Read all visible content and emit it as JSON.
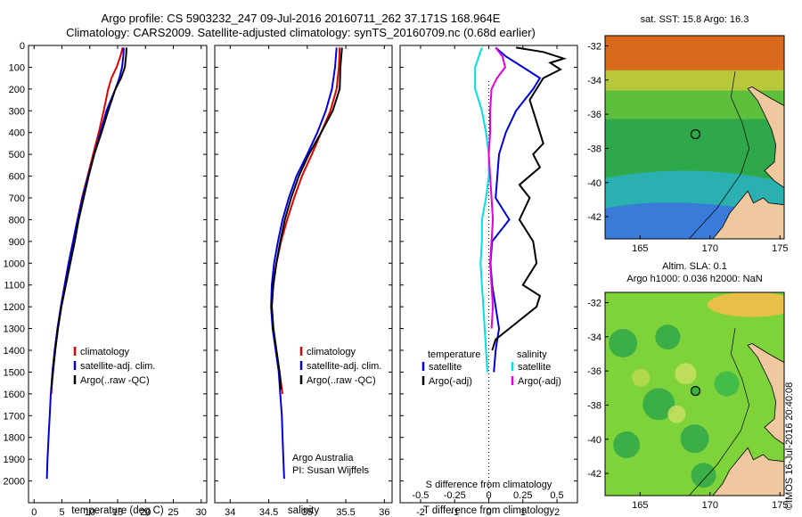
{
  "header": {
    "line1": "Argo profile: CS 5903232_247 09-Jul-2016 20160711_262 37.171S 168.964E",
    "line2": "Climatology: CARS2009. Satellite-adjusted climatology: synTS_20160709.nc (0.68d earlier)"
  },
  "colors": {
    "climatology": "#e00000",
    "satellite": "#0000dd",
    "argo": "#000000",
    "satellite_salinity": "#00e0e0",
    "argo_salinity": "#e000e0",
    "land": "#f0c8a0"
  },
  "chart_data": [
    {
      "id": "temperature",
      "type": "line",
      "xlabel": "temperature (deg C)",
      "ylabel": "",
      "xlim": [
        -1,
        31
      ],
      "ylim": [
        2100,
        0
      ],
      "xticks": [
        "0",
        "5",
        "10",
        "15",
        "20",
        "25",
        "30"
      ],
      "yticks": [
        "0",
        "100",
        "200",
        "300",
        "400",
        "500",
        "600",
        "700",
        "800",
        "900",
        "1000",
        "1100",
        "1200",
        "1300",
        "1400",
        "1500",
        "1600",
        "1700",
        "1800",
        "1900",
        "2000"
      ],
      "legend": [
        "climatology",
        "satellite-adj. clim.",
        "Argo(..raw -QC)"
      ],
      "series": [
        {
          "name": "climatology",
          "color": "#e00000",
          "points": [
            [
              15.9,
              10
            ],
            [
              15.5,
              50
            ],
            [
              14.8,
              100
            ],
            [
              13.9,
              150
            ],
            [
              13.3,
              200
            ],
            [
              12.5,
              300
            ],
            [
              11.6,
              400
            ],
            [
              10.6,
              500
            ],
            [
              9.6,
              600
            ],
            [
              8.6,
              700
            ],
            [
              7.8,
              800
            ],
            [
              7.0,
              900
            ],
            [
              6.2,
              1000
            ],
            [
              5.5,
              1100
            ],
            [
              4.8,
              1200
            ],
            [
              4.2,
              1300
            ],
            [
              3.7,
              1400
            ],
            [
              3.3,
              1500
            ],
            [
              3.1,
              1600
            ]
          ]
        },
        {
          "name": "satellite-adj. clim.",
          "color": "#0000dd",
          "points": [
            [
              16.1,
              10
            ],
            [
              16.0,
              50
            ],
            [
              15.8,
              100
            ],
            [
              15.3,
              150
            ],
            [
              14.6,
              200
            ],
            [
              13.0,
              300
            ],
            [
              11.9,
              400
            ],
            [
              10.8,
              500
            ],
            [
              9.7,
              600
            ],
            [
              8.7,
              700
            ],
            [
              7.8,
              800
            ],
            [
              7.0,
              900
            ],
            [
              6.2,
              1000
            ],
            [
              5.5,
              1100
            ],
            [
              4.8,
              1200
            ],
            [
              4.2,
              1300
            ],
            [
              3.7,
              1400
            ],
            [
              3.3,
              1500
            ],
            [
              3.0,
              1600
            ],
            [
              2.8,
              1700
            ],
            [
              2.6,
              1800
            ],
            [
              2.4,
              1900
            ],
            [
              2.3,
              1990
            ]
          ]
        },
        {
          "name": "Argo(..raw -QC)",
          "color": "#000000",
          "points": [
            [
              16.6,
              10
            ],
            [
              16.5,
              50
            ],
            [
              16.3,
              100
            ],
            [
              15.6,
              150
            ],
            [
              14.6,
              200
            ],
            [
              13.3,
              300
            ],
            [
              12.1,
              400
            ],
            [
              10.8,
              500
            ],
            [
              9.8,
              600
            ],
            [
              8.9,
              700
            ],
            [
              8.0,
              800
            ],
            [
              7.3,
              900
            ],
            [
              6.5,
              1000
            ],
            [
              5.7,
              1100
            ],
            [
              4.9,
              1200
            ],
            [
              4.3,
              1300
            ],
            [
              3.8,
              1400
            ],
            [
              3.4,
              1500
            ],
            [
              3.1,
              1580
            ]
          ]
        }
      ]
    },
    {
      "id": "salinity",
      "type": "line",
      "xlabel": "salinity",
      "xlim": [
        33.8,
        36.1
      ],
      "ylim": [
        2100,
        0
      ],
      "xticks": [
        "34",
        "34.5",
        "35",
        "35.5",
        "36"
      ],
      "legend": [
        "climatology",
        "satellite-adj. clim.",
        "Argo(..raw -QC)"
      ],
      "annotations": [
        "Argo Australia",
        "PI: Susan Wijffels"
      ],
      "series": [
        {
          "name": "climatology",
          "color": "#e00000",
          "points": [
            [
              35.42,
              10
            ],
            [
              35.41,
              100
            ],
            [
              35.38,
              200
            ],
            [
              35.3,
              300
            ],
            [
              35.18,
              400
            ],
            [
              35.06,
              500
            ],
            [
              34.93,
              600
            ],
            [
              34.83,
              700
            ],
            [
              34.74,
              800
            ],
            [
              34.66,
              900
            ],
            [
              34.6,
              1000
            ],
            [
              34.55,
              1100
            ],
            [
              34.54,
              1200
            ],
            [
              34.56,
              1300
            ],
            [
              34.6,
              1400
            ],
            [
              34.64,
              1500
            ],
            [
              34.68,
              1600
            ]
          ]
        },
        {
          "name": "satellite-adj. clim.",
          "color": "#0000dd",
          "points": [
            [
              35.38,
              10
            ],
            [
              35.36,
              100
            ],
            [
              35.32,
              200
            ],
            [
              35.24,
              300
            ],
            [
              35.13,
              400
            ],
            [
              35.0,
              500
            ],
            [
              34.86,
              600
            ],
            [
              34.76,
              700
            ],
            [
              34.68,
              800
            ],
            [
              34.62,
              900
            ],
            [
              34.57,
              1000
            ],
            [
              34.54,
              1100
            ],
            [
              34.53,
              1200
            ],
            [
              34.55,
              1300
            ],
            [
              34.59,
              1400
            ],
            [
              34.63,
              1500
            ],
            [
              34.65,
              1600
            ],
            [
              34.67,
              1700
            ],
            [
              34.68,
              1800
            ],
            [
              34.69,
              1900
            ],
            [
              34.7,
              1990
            ]
          ]
        },
        {
          "name": "Argo(..raw -QC)",
          "color": "#000000",
          "points": [
            [
              35.45,
              10
            ],
            [
              35.43,
              100
            ],
            [
              35.42,
              200
            ],
            [
              35.33,
              300
            ],
            [
              35.18,
              400
            ],
            [
              35.02,
              500
            ],
            [
              34.89,
              600
            ],
            [
              34.79,
              700
            ],
            [
              34.71,
              800
            ],
            [
              34.65,
              900
            ],
            [
              34.6,
              1000
            ],
            [
              34.56,
              1100
            ],
            [
              34.54,
              1200
            ],
            [
              34.56,
              1300
            ],
            [
              34.6,
              1400
            ],
            [
              34.64,
              1500
            ],
            [
              34.66,
              1580
            ]
          ]
        }
      ]
    },
    {
      "id": "differences",
      "type": "line",
      "xlabel": "T difference from climatology",
      "xlabel2": "S difference from climatology",
      "xlim": [
        -2.6,
        2.6
      ],
      "ylim": [
        2100,
        0
      ],
      "xticks": [
        "-2",
        "-1",
        "0",
        "1",
        "2"
      ],
      "xticks_s": [
        "-0.5",
        "-0.25",
        "0",
        "0.25",
        "0.5"
      ],
      "legend_temperature": {
        "heading": "temperature",
        "items": [
          "satellite",
          "Argo(-adj)"
        ]
      },
      "legend_salinity": {
        "heading": "salinity",
        "items": [
          "satellite",
          "Argo(-adj)"
        ]
      },
      "series": [
        {
          "name": "T satellite",
          "color": "#0000dd",
          "points": [
            [
              0.2,
              10
            ],
            [
              0.5,
              50
            ],
            [
              1.0,
              100
            ],
            [
              1.5,
              150
            ],
            [
              1.3,
              200
            ],
            [
              0.8,
              300
            ],
            [
              0.5,
              400
            ],
            [
              0.3,
              500
            ],
            [
              0.25,
              600
            ],
            [
              0.2,
              700
            ],
            [
              0.6,
              800
            ],
            [
              0.1,
              900
            ],
            [
              0.05,
              1000
            ],
            [
              0.1,
              1100
            ],
            [
              0.2,
              1200
            ],
            [
              0.3,
              1300
            ],
            [
              0.2,
              1400
            ],
            [
              0.15,
              1500
            ]
          ]
        },
        {
          "name": "T Argo(-adj)",
          "color": "#000000",
          "points": [
            [
              0.8,
              10
            ],
            [
              1.6,
              30
            ],
            [
              2.2,
              60
            ],
            [
              1.8,
              80
            ],
            [
              2.1,
              110
            ],
            [
              1.6,
              150
            ],
            [
              1.2,
              250
            ],
            [
              1.3,
              300
            ],
            [
              1.5,
              400
            ],
            [
              1.6,
              450
            ],
            [
              1.3,
              500
            ],
            [
              1.5,
              560
            ],
            [
              0.9,
              640
            ],
            [
              1.2,
              700
            ],
            [
              0.9,
              800
            ],
            [
              1.3,
              900
            ],
            [
              1.4,
              1000
            ],
            [
              1.0,
              1100
            ],
            [
              1.5,
              1150
            ],
            [
              1.4,
              1200
            ],
            [
              0.6,
              1300
            ],
            [
              0.2,
              1350
            ],
            [
              0.1,
              1400
            ]
          ]
        },
        {
          "name": "S satellite",
          "color": "#00e0e0",
          "points": [
            [
              -0.05,
              10
            ],
            [
              -0.1,
              100
            ],
            [
              -0.1,
              200
            ],
            [
              -0.05,
              300
            ],
            [
              -0.02,
              400
            ],
            [
              0.0,
              500
            ],
            [
              0.0,
              600
            ],
            [
              -0.02,
              700
            ],
            [
              -0.05,
              800
            ],
            [
              -0.05,
              900
            ],
            [
              -0.06,
              1000
            ],
            [
              -0.05,
              1100
            ],
            [
              -0.04,
              1200
            ],
            [
              -0.03,
              1300
            ],
            [
              -0.02,
              1400
            ],
            [
              -0.01,
              1500
            ]
          ]
        },
        {
          "name": "S Argo(-adj)",
          "color": "#e000e0",
          "points": [
            [
              0.05,
              10
            ],
            [
              0.1,
              50
            ],
            [
              0.12,
              100
            ],
            [
              0.06,
              150
            ],
            [
              0.02,
              200
            ],
            [
              0.01,
              300
            ],
            [
              0.01,
              400
            ],
            [
              0.0,
              500
            ],
            [
              0.01,
              600
            ],
            [
              0.02,
              700
            ],
            [
              0.03,
              800
            ],
            [
              0.02,
              900
            ],
            [
              0.01,
              1000
            ],
            [
              0.02,
              1100
            ],
            [
              0.03,
              1200
            ],
            [
              0.02,
              1300
            ]
          ]
        }
      ]
    }
  ],
  "maps": [
    {
      "id": "sst",
      "title": "sat. SST: 15.8 Argo: 16.3",
      "title2": "",
      "lon_ticks": [
        "165",
        "170",
        "175"
      ],
      "lat_ticks": [
        "-32",
        "-34",
        "-36",
        "-38",
        "-40",
        "-42"
      ],
      "lon_range": [
        162.5,
        175.3
      ],
      "lat_range": [
        -43.3,
        -31.4
      ],
      "float_lon": 168.964,
      "float_lat": -37.171
    },
    {
      "id": "sla",
      "title": "Altim. SLA: 0.1",
      "title2": "Argo h1000: 0.036 h2000: NaN",
      "lon_ticks": [
        "165",
        "170",
        "175"
      ],
      "lat_ticks": [
        "-32",
        "-34",
        "-36",
        "-38",
        "-40",
        "-42"
      ],
      "lon_range": [
        162.5,
        175.3
      ],
      "lat_range": [
        -43.3,
        -31.4
      ],
      "float_lon": 168.964,
      "float_lat": -37.171
    }
  ],
  "timestamp": "©IMOS 16-Jul-2016 20:40:08"
}
